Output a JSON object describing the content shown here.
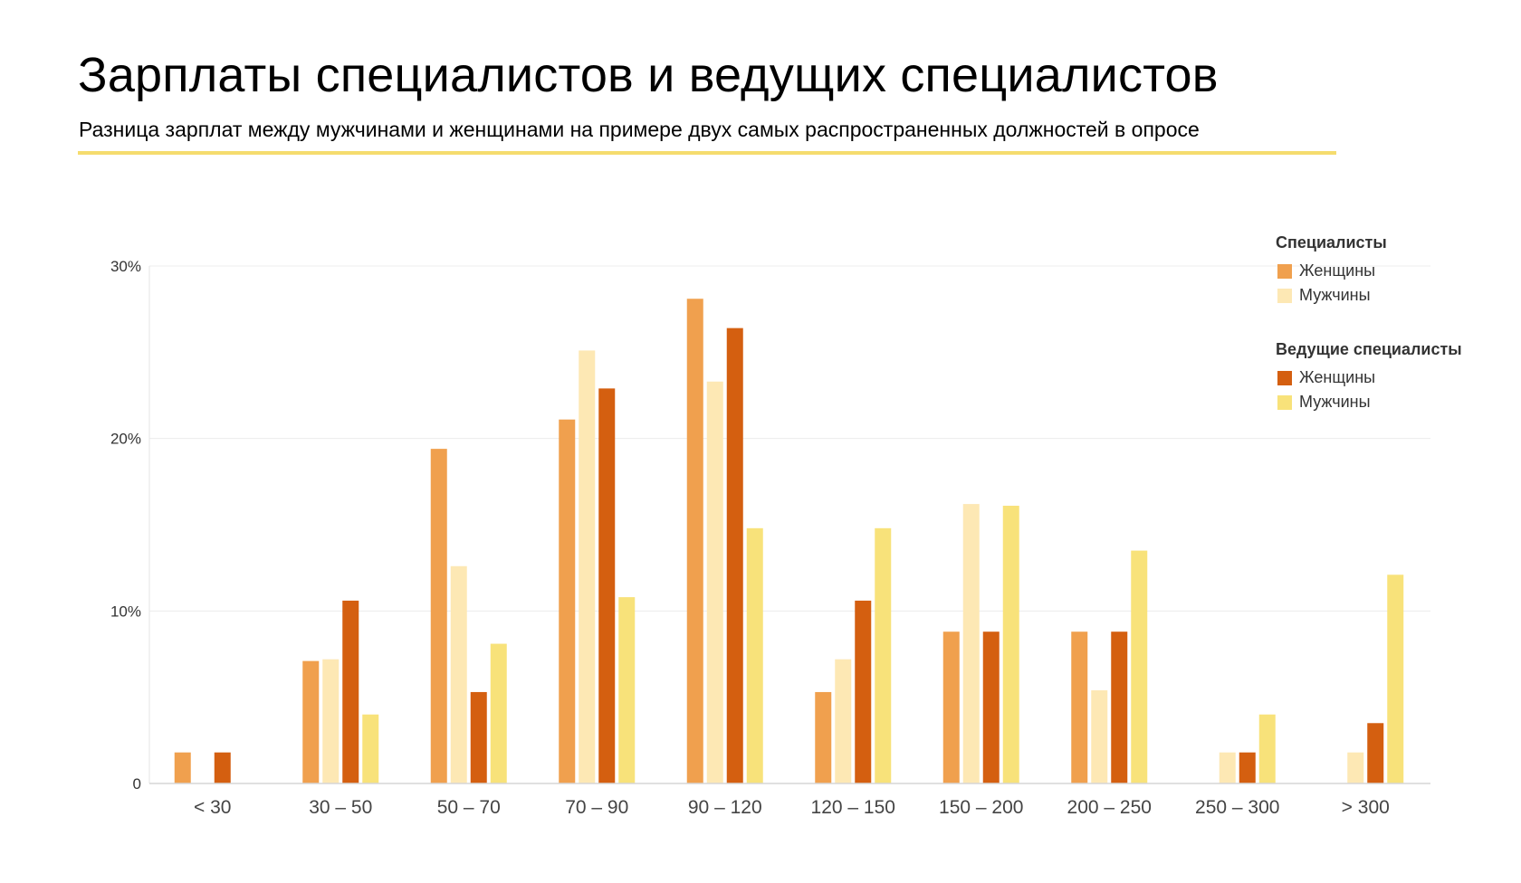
{
  "header": {
    "title": "Зарплаты специалистов и ведущих специалистов",
    "subtitle": "Разница зарплат между мужчинами и женщинами на примере двух самых распространенных должностей в опросе"
  },
  "legend": {
    "groups": [
      {
        "title": "Специалисты",
        "items": [
          {
            "label": "Женщины",
            "color": "#f0a04e"
          },
          {
            "label": "Мужчины",
            "color": "#fde8b4"
          }
        ]
      },
      {
        "title": "Ведущие специалисты",
        "items": [
          {
            "label": "Женщины",
            "color": "#d45f10"
          },
          {
            "label": "Мужчины",
            "color": "#f8e27a"
          }
        ]
      }
    ]
  },
  "chart_data": {
    "type": "bar",
    "categories": [
      "< 30",
      "30 – 50",
      "50 – 70",
      "70 – 90",
      "90 – 120",
      "120 – 150",
      "150 – 200",
      "200 – 250",
      "250 – 300",
      "> 300"
    ],
    "series": [
      {
        "name": "Специалисты — Женщины",
        "color": "#f0a04e",
        "values": [
          1.8,
          7.1,
          19.4,
          21.1,
          28.1,
          5.3,
          8.8,
          8.8,
          0,
          0
        ]
      },
      {
        "name": "Специалисты — Мужчины",
        "color": "#fde8b4",
        "values": [
          0,
          7.2,
          12.6,
          25.1,
          23.3,
          7.2,
          16.2,
          5.4,
          1.8,
          1.8
        ]
      },
      {
        "name": "Ведущие специалисты — Женщины",
        "color": "#d45f10",
        "values": [
          1.8,
          10.6,
          5.3,
          22.9,
          26.4,
          10.6,
          8.8,
          8.8,
          1.8,
          3.5
        ]
      },
      {
        "name": "Ведущие специалисты — Мужчины",
        "color": "#f8e27a",
        "values": [
          0,
          4.0,
          8.1,
          10.8,
          14.8,
          14.8,
          16.1,
          13.5,
          4.0,
          12.1
        ]
      }
    ],
    "ylim": [
      0,
      30
    ],
    "yticks": [
      {
        "value": 0,
        "label": "0"
      },
      {
        "value": 10,
        "label": "10%"
      },
      {
        "value": 20,
        "label": "20%"
      },
      {
        "value": 30,
        "label": "30%"
      }
    ],
    "xlabel": "",
    "ylabel": "",
    "grid": true,
    "legend_position": "top-right"
  }
}
